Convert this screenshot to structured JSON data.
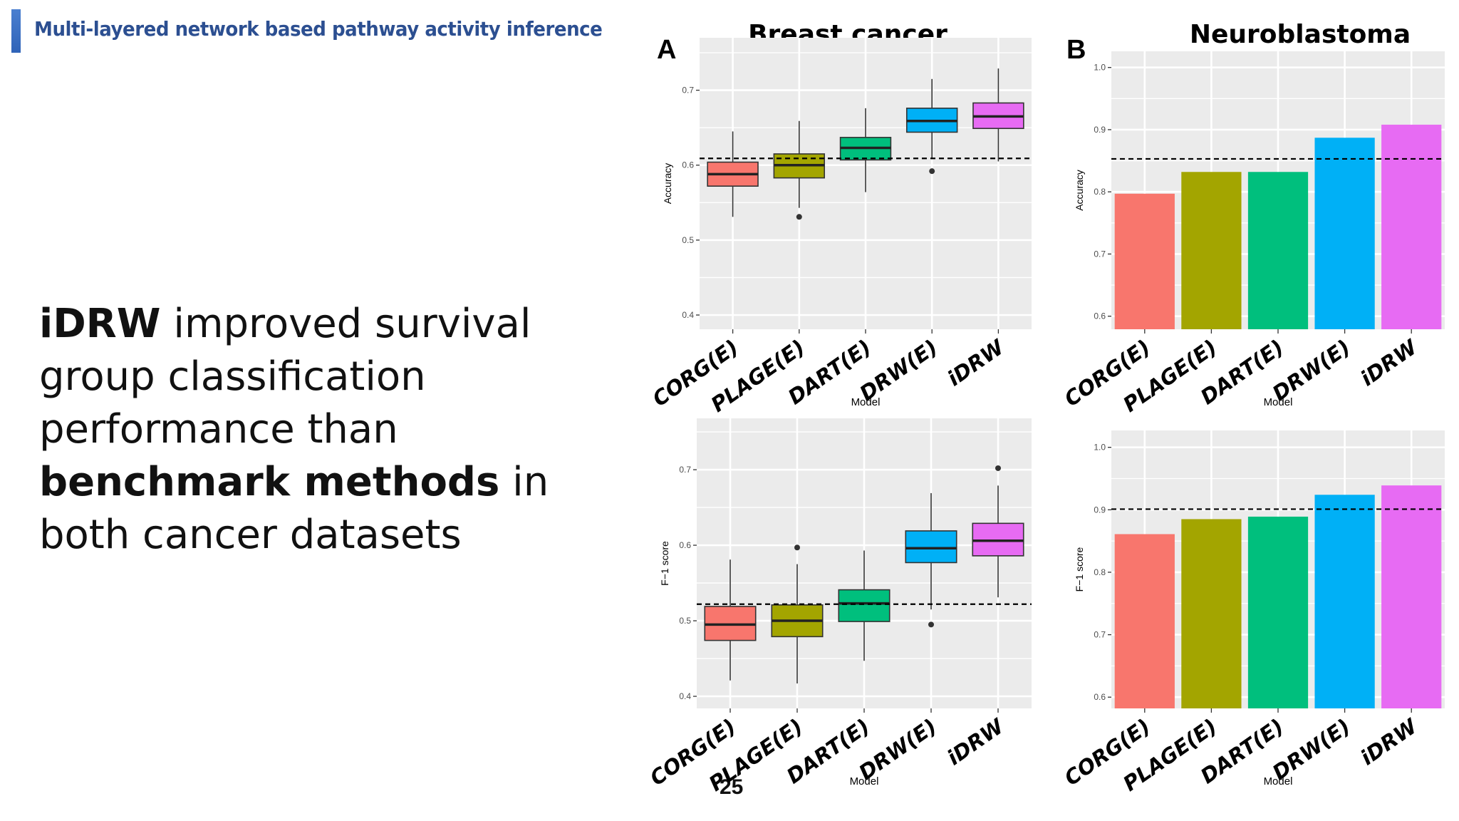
{
  "slide": {
    "title": "Multi-layered network based pathway activity inference",
    "body": {
      "part1_bold": "iDRW",
      "part2": " improved survival group classification performance than ",
      "part3_bold": "benchmark methods",
      "part4": " in both cancer datasets"
    },
    "page_number": "25"
  },
  "panels": [
    {
      "letter": "A",
      "title": "Breast cancer"
    },
    {
      "letter": "B",
      "title": "Neuroblastoma"
    }
  ],
  "colors": [
    "#F8766D",
    "#A3A500",
    "#00BF7D",
    "#00B0F6",
    "#E76BF3"
  ],
  "chart_data": [
    {
      "type": "box",
      "panel": "A",
      "ylabel": "Accuracy",
      "xlabel": "Model",
      "categories": [
        "CORG(E)",
        "PLAGE(E)",
        "DART(E)",
        "DRW(E)",
        "iDRW"
      ],
      "ylim": [
        0.381,
        0.77
      ],
      "yticks": [
        0.4,
        0.5,
        0.6,
        0.7
      ],
      "ytick_labels": [
        "0.4",
        "0.5",
        "0.6",
        "0.7"
      ],
      "reference_line": 0.609,
      "boxes": [
        {
          "whisker_low": 0.531,
          "q1": 0.572,
          "median": 0.588,
          "q3": 0.604,
          "whisker_high": 0.645,
          "outliers": []
        },
        {
          "whisker_low": 0.543,
          "q1": 0.583,
          "median": 0.6,
          "q3": 0.615,
          "whisker_high": 0.659,
          "outliers": [
            0.531
          ]
        },
        {
          "whisker_low": 0.564,
          "q1": 0.607,
          "median": 0.623,
          "q3": 0.637,
          "whisker_high": 0.676,
          "outliers": []
        },
        {
          "whisker_low": 0.608,
          "q1": 0.644,
          "median": 0.659,
          "q3": 0.676,
          "whisker_high": 0.715,
          "outliers": [
            0.592
          ]
        },
        {
          "whisker_low": 0.605,
          "q1": 0.649,
          "median": 0.665,
          "q3": 0.683,
          "whisker_high": 0.729,
          "outliers": []
        }
      ]
    },
    {
      "type": "bar",
      "panel": "B",
      "ylabel": "Accuracy",
      "xlabel": "Model",
      "categories": [
        "CORG(E)",
        "PLAGE(E)",
        "DART(E)",
        "DRW(E)",
        "iDRW"
      ],
      "ylim": [
        0.579,
        1.026
      ],
      "yticks": [
        0.6,
        0.7,
        0.8,
        0.9,
        1.0
      ],
      "ytick_labels": [
        "0.6",
        "0.7",
        "0.8",
        "0.9",
        "1.0"
      ],
      "reference_line": 0.853,
      "values": [
        0.797,
        0.832,
        0.832,
        0.887,
        0.908
      ]
    },
    {
      "type": "box",
      "panel": "A",
      "ylabel": "F−1 score",
      "xlabel": "Model",
      "categories": [
        "CORG(E)",
        "PLAGE(E)",
        "DART(E)",
        "DRW(E)",
        "iDRW"
      ],
      "ylim": [
        0.384,
        0.768
      ],
      "yticks": [
        0.4,
        0.5,
        0.6,
        0.7
      ],
      "ytick_labels": [
        "0.4",
        "0.5",
        "0.6",
        "0.7"
      ],
      "reference_line": 0.522,
      "boxes": [
        {
          "whisker_low": 0.421,
          "q1": 0.474,
          "median": 0.495,
          "q3": 0.519,
          "whisker_high": 0.581,
          "outliers": []
        },
        {
          "whisker_low": 0.417,
          "q1": 0.479,
          "median": 0.5,
          "q3": 0.521,
          "whisker_high": 0.575,
          "outliers": [
            0.597
          ]
        },
        {
          "whisker_low": 0.447,
          "q1": 0.499,
          "median": 0.523,
          "q3": 0.541,
          "whisker_high": 0.593,
          "outliers": []
        },
        {
          "whisker_low": 0.515,
          "q1": 0.577,
          "median": 0.596,
          "q3": 0.619,
          "whisker_high": 0.669,
          "outliers": [
            0.495
          ]
        },
        {
          "whisker_low": 0.531,
          "q1": 0.586,
          "median": 0.606,
          "q3": 0.629,
          "whisker_high": 0.679,
          "outliers": [
            0.702
          ]
        }
      ]
    },
    {
      "type": "bar",
      "panel": "B",
      "ylabel": "F−1 score",
      "xlabel": "Model",
      "categories": [
        "CORG(E)",
        "PLAGE(E)",
        "DART(E)",
        "DRW(E)",
        "iDRW"
      ],
      "ylim": [
        0.582,
        1.027
      ],
      "yticks": [
        0.6,
        0.7,
        0.8,
        0.9,
        1.0
      ],
      "ytick_labels": [
        "0.6",
        "0.7",
        "0.8",
        "0.9",
        "1.0"
      ],
      "reference_line": 0.901,
      "values": [
        0.861,
        0.885,
        0.889,
        0.924,
        0.939
      ]
    }
  ]
}
